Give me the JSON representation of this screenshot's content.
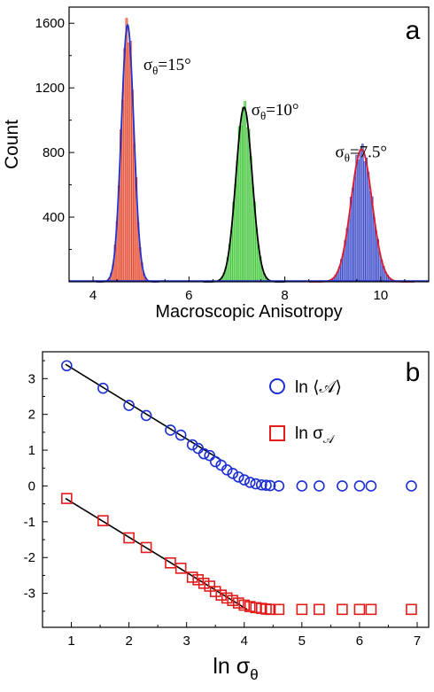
{
  "chart_data": [
    {
      "type": "histogram",
      "panel_label": "a",
      "xlabel": "Macroscopic Anisotropy",
      "ylabel": "Count",
      "xlim": [
        3.5,
        11.0
      ],
      "ylim": [
        0,
        1700
      ],
      "xticks": [
        "4",
        "6",
        "8",
        "10"
      ],
      "yticks": [
        "400",
        "800",
        "1200",
        "1600"
      ],
      "series": [
        {
          "peak_x": 4.72,
          "sigma": 0.13,
          "peak_y": 1590,
          "bar_color": "#e23a1e",
          "fit_color": "#2233cc"
        },
        {
          "peak_x": 7.15,
          "sigma": 0.17,
          "peak_y": 1080,
          "bar_color": "#35c22b",
          "fit_color": "#000000"
        },
        {
          "peak_x": 9.6,
          "sigma": 0.22,
          "peak_y": 820,
          "bar_color": "#2d3ec4",
          "fit_color": "#e01a2a"
        }
      ],
      "annotations": [
        {
          "prefix": "σ",
          "sub": "θ",
          "suffix": "=15°",
          "x": 5.05,
          "y": 1310
        },
        {
          "prefix": "σ",
          "sub": "θ",
          "suffix": "=10°",
          "x": 7.3,
          "y": 1030
        },
        {
          "prefix": "σ",
          "sub": "θ",
          "suffix": "=7.5°",
          "x": 9.05,
          "y": 770
        }
      ]
    },
    {
      "type": "scatter",
      "panel_label": "b",
      "xlabel_main": "ln σ",
      "xlabel_sub": "θ",
      "xlim": [
        0.5,
        7.2
      ],
      "ylim": [
        -3.95,
        3.75
      ],
      "xticks": [
        "1",
        "2",
        "3",
        "4",
        "5",
        "6",
        "7"
      ],
      "yticks": [
        "3",
        "2",
        "1",
        "0",
        "-1",
        "-2",
        "-3"
      ],
      "legend": [
        {
          "label": "ln ⟨𝒜⟩",
          "marker": "circle",
          "color": "#1c2fd1"
        },
        {
          "label_main": "ln σ",
          "label_sub": "𝒜",
          "marker": "square",
          "color": "#e31b1b"
        }
      ],
      "series": [
        {
          "marker": "circle",
          "color": "#1c2fd1",
          "x": [
            0.92,
            1.55,
            2.0,
            2.3,
            2.72,
            2.9,
            3.1,
            3.2,
            3.3,
            3.4,
            3.5,
            3.6,
            3.7,
            3.8,
            3.9,
            4.0,
            4.1,
            4.2,
            4.3,
            4.38,
            4.45,
            4.6,
            5.0,
            5.3,
            5.7,
            6.0,
            6.2,
            6.9
          ],
          "y": [
            3.36,
            2.73,
            2.25,
            1.97,
            1.56,
            1.42,
            1.15,
            1.05,
            0.9,
            0.85,
            0.68,
            0.58,
            0.45,
            0.35,
            0.25,
            0.17,
            0.1,
            0.06,
            0.03,
            0.02,
            0.01,
            0.0,
            0.0,
            0.0,
            0.0,
            0.0,
            0.0,
            0.0
          ]
        },
        {
          "marker": "square",
          "color": "#e31b1b",
          "x": [
            0.92,
            1.55,
            2.0,
            2.3,
            2.72,
            2.9,
            3.1,
            3.2,
            3.3,
            3.4,
            3.5,
            3.6,
            3.7,
            3.8,
            3.9,
            4.0,
            4.1,
            4.2,
            4.3,
            4.38,
            4.45,
            4.6,
            5.0,
            5.3,
            5.7,
            6.0,
            6.2,
            6.9
          ],
          "y": [
            -0.35,
            -0.97,
            -1.45,
            -1.72,
            -2.15,
            -2.3,
            -2.55,
            -2.62,
            -2.72,
            -2.8,
            -2.95,
            -3.05,
            -3.13,
            -3.2,
            -3.27,
            -3.33,
            -3.37,
            -3.4,
            -3.42,
            -3.44,
            -3.45,
            -3.45,
            -3.45,
            -3.45,
            -3.45,
            -3.45,
            -3.45,
            -3.45
          ]
        }
      ],
      "fit_lines": [
        {
          "x1": 0.9,
          "y1": 3.4,
          "x2": 3.6,
          "y2": 0.72
        },
        {
          "x1": 0.9,
          "y1": -0.35,
          "x2": 4.05,
          "y2": -3.45
        }
      ]
    }
  ]
}
